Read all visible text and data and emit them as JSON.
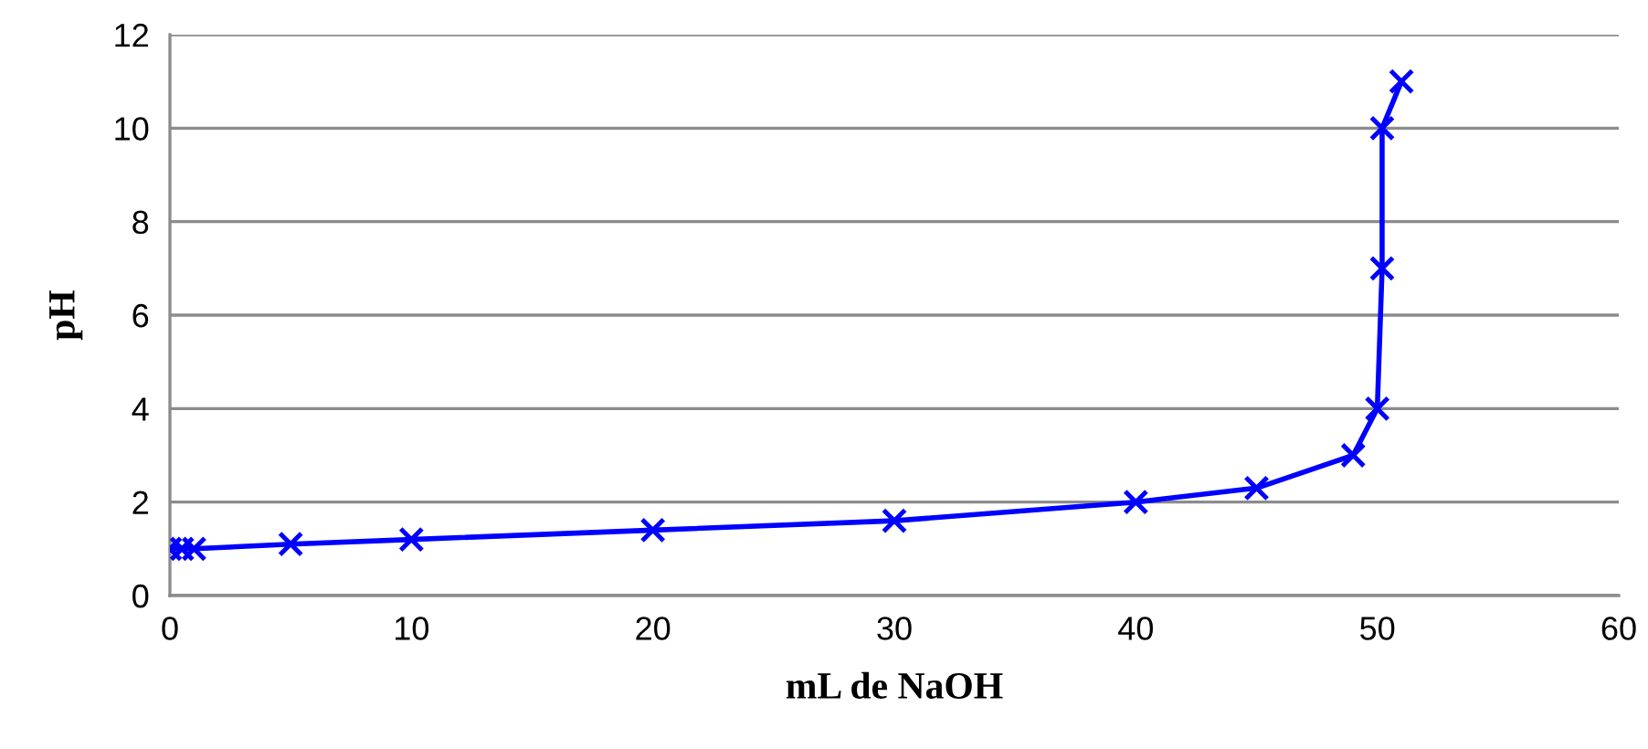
{
  "chart_data": {
    "type": "line",
    "xlabel": "mL de NaOH",
    "ylabel": "pH",
    "x": [
      0,
      0.5,
      1,
      5,
      10,
      20,
      30,
      40,
      45,
      49,
      50,
      50.2,
      50.2,
      51
    ],
    "series": [
      {
        "color": "#0000ff",
        "values": [
          1,
          1,
          1,
          1.1,
          1.2,
          1.4,
          1.6,
          2,
          2.3,
          3,
          4,
          7,
          10,
          11
        ]
      }
    ],
    "xlim": [
      0,
      60
    ],
    "ylim": [
      0,
      12
    ],
    "xticks": [
      0,
      10,
      20,
      30,
      40,
      50,
      60
    ],
    "yticks": [
      0,
      2,
      4,
      6,
      8,
      10,
      12
    ],
    "grid": "y",
    "marker": "cross",
    "line_style": "solid",
    "legend": false
  }
}
